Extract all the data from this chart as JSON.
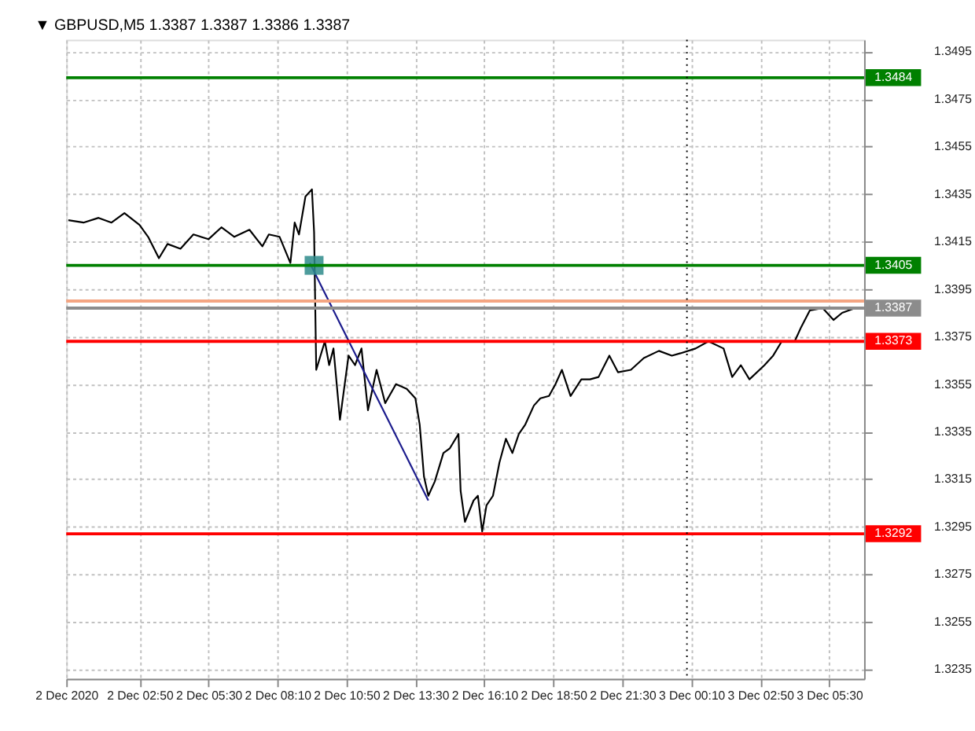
{
  "chart_data": {
    "type": "line",
    "title": "▼ GBPUSD,M5  1.3387 1.3387 1.3386 1.3387",
    "xlim": [
      "2020-12-02T00:00",
      "2020-12-03T06:51"
    ],
    "ylim": [
      1.3231,
      1.35
    ],
    "xticks": [
      {
        "value": "2020-12-02T00:00",
        "label": "2 Dec 2020"
      },
      {
        "value": "2020-12-02T02:50",
        "label": "2 Dec 02:50"
      },
      {
        "value": "2020-12-02T05:30",
        "label": "2 Dec 05:30"
      },
      {
        "value": "2020-12-02T08:10",
        "label": "2 Dec 08:10"
      },
      {
        "value": "2020-12-02T10:50",
        "label": "2 Dec 10:50"
      },
      {
        "value": "2020-12-02T13:30",
        "label": "2 Dec 13:30"
      },
      {
        "value": "2020-12-02T16:10",
        "label": "2 Dec 16:10"
      },
      {
        "value": "2020-12-02T18:50",
        "label": "2 Dec 18:50"
      },
      {
        "value": "2020-12-02T21:30",
        "label": "2 Dec 21:30"
      },
      {
        "value": "2020-12-03T00:10",
        "label": "3 Dec 00:10"
      },
      {
        "value": "2020-12-03T02:50",
        "label": "3 Dec 02:50"
      },
      {
        "value": "2020-12-03T05:30",
        "label": "3 Dec 05:30"
      }
    ],
    "yticks": [
      1.3235,
      1.3255,
      1.3275,
      1.3295,
      1.3315,
      1.3335,
      1.3355,
      1.3375,
      1.3395,
      1.3415,
      1.3435,
      1.3455,
      1.3475,
      1.3495
    ],
    "grid": true,
    "series": [
      {
        "color": "#000000",
        "line_style": "solid",
        "x": [
          "2020-12-02T00:05",
          "2020-12-02T00:40",
          "2020-12-02T01:15",
          "2020-12-02T01:45",
          "2020-12-02T02:15",
          "2020-12-02T02:50",
          "2020-12-02T03:10",
          "2020-12-02T03:35",
          "2020-12-02T03:55",
          "2020-12-02T04:25",
          "2020-12-02T04:55",
          "2020-12-02T05:30",
          "2020-12-02T06:00",
          "2020-12-02T06:30",
          "2020-12-02T07:05",
          "2020-12-02T07:35",
          "2020-12-02T07:50",
          "2020-12-02T08:15",
          "2020-12-02T08:40",
          "2020-12-02T08:50",
          "2020-12-02T09:00",
          "2020-12-02T09:15",
          "2020-12-02T09:30",
          "2020-12-02T09:35",
          "2020-12-02T09:40",
          "2020-12-02T10:00",
          "2020-12-02T10:10",
          "2020-12-02T10:20",
          "2020-12-02T10:35",
          "2020-12-02T10:55",
          "2020-12-02T11:10",
          "2020-12-02T11:25",
          "2020-12-02T11:40",
          "2020-12-02T12:00",
          "2020-12-02T12:20",
          "2020-12-02T12:45",
          "2020-12-02T13:10",
          "2020-12-02T13:30",
          "2020-12-02T13:40",
          "2020-12-02T13:50",
          "2020-12-02T14:00",
          "2020-12-02T14:15",
          "2020-12-02T14:35",
          "2020-12-02T14:50",
          "2020-12-02T15:10",
          "2020-12-02T15:15",
          "2020-12-02T15:25",
          "2020-12-02T15:45",
          "2020-12-02T15:55",
          "2020-12-02T16:05",
          "2020-12-02T16:15",
          "2020-12-02T16:30",
          "2020-12-02T16:45",
          "2020-12-02T17:00",
          "2020-12-02T17:15",
          "2020-12-02T17:30",
          "2020-12-02T17:45",
          "2020-12-02T18:05",
          "2020-12-02T18:20",
          "2020-12-02T18:40",
          "2020-12-02T18:55",
          "2020-12-02T19:10",
          "2020-12-02T19:30",
          "2020-12-02T19:55",
          "2020-12-02T20:15",
          "2020-12-02T20:35",
          "2020-12-02T21:00",
          "2020-12-02T21:20",
          "2020-12-02T21:50",
          "2020-12-02T22:20",
          "2020-12-02T22:55",
          "2020-12-02T23:25",
          "2020-12-02T23:45",
          "2020-12-03T00:20",
          "2020-12-03T00:50",
          "2020-12-03T01:25",
          "2020-12-03T01:45",
          "2020-12-03T02:05",
          "2020-12-03T02:25",
          "2020-12-03T03:00",
          "2020-12-03T03:20",
          "2020-12-03T03:40",
          "2020-12-03T04:10",
          "2020-12-03T04:25",
          "2020-12-03T04:45",
          "2020-12-03T05:15",
          "2020-12-03T05:40",
          "2020-12-03T06:00",
          "2020-12-03T06:30"
        ],
        "values": [
          1.3424,
          1.3423,
          1.3425,
          1.3423,
          1.3427,
          1.3422,
          1.3417,
          1.3408,
          1.3414,
          1.3412,
          1.3418,
          1.3416,
          1.3421,
          1.3417,
          1.342,
          1.3413,
          1.3418,
          1.3417,
          1.3406,
          1.3423,
          1.3418,
          1.3434,
          1.3437,
          1.3419,
          1.3361,
          1.3373,
          1.3363,
          1.337,
          1.334,
          1.3367,
          1.3363,
          1.337,
          1.3344,
          1.3361,
          1.3347,
          1.3355,
          1.3353,
          1.3349,
          1.3338,
          1.3316,
          1.3308,
          1.3314,
          1.3326,
          1.3328,
          1.3334,
          1.331,
          1.3297,
          1.3306,
          1.3308,
          1.3293,
          1.3304,
          1.3308,
          1.3322,
          1.3332,
          1.3326,
          1.3334,
          1.3338,
          1.3346,
          1.3349,
          1.335,
          1.3355,
          1.3361,
          1.335,
          1.3357,
          1.3357,
          1.3358,
          1.3367,
          1.336,
          1.3361,
          1.3366,
          1.3369,
          1.3367,
          1.3368,
          1.337,
          1.3373,
          1.337,
          1.3358,
          1.3363,
          1.3357,
          1.3363,
          1.3367,
          1.3373,
          1.3373,
          1.3379,
          1.3386,
          1.3387,
          1.3382,
          1.3385,
          1.3387
        ]
      },
      {
        "type": "line",
        "color": "#1a1a8c",
        "line_style": "solid",
        "x": [
          "2020-12-02T09:25",
          "2020-12-02T14:00"
        ],
        "values": [
          1.3406,
          1.3306
        ]
      },
      {
        "type": "scatter",
        "color": "#2e8b8b",
        "marker": "square",
        "x": [
          "2020-12-02T09:35"
        ],
        "values": [
          1.3405
        ]
      }
    ],
    "ref_lines": [
      {
        "axis": "y",
        "value": 1.3484,
        "label": "1.3484",
        "color": "#008000"
      },
      {
        "axis": "y",
        "value": 1.3405,
        "label": "1.3405",
        "color": "#008000"
      },
      {
        "axis": "y",
        "value": 1.339,
        "label": null,
        "color": "#f4a582"
      },
      {
        "axis": "y",
        "value": 1.3387,
        "label": "1.3387",
        "color": "#8c8c8c"
      },
      {
        "axis": "y",
        "value": 1.3373,
        "label": "1.3373",
        "color": "#ff0000"
      },
      {
        "axis": "y",
        "value": 1.3292,
        "label": "1.3292",
        "color": "#ff0000"
      },
      {
        "axis": "x",
        "value": "2020-12-03T00:00",
        "label": null,
        "color": "#000000",
        "line_style": "dotted"
      }
    ]
  }
}
